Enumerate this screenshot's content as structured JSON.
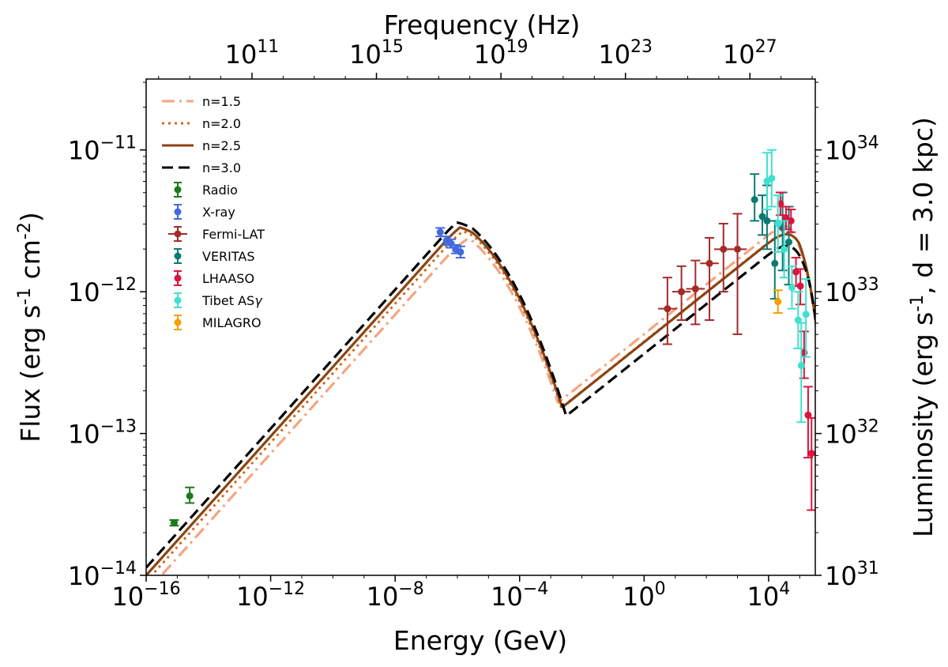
{
  "chart_data": {
    "type": "scatter",
    "title": "",
    "xlabel": "Energy (GeV)",
    "ylabel": "Flux (erg s$^{-1}$ cm$^{-2}$)",
    "top_xlabel": "Frequency (Hz)",
    "right_ylabel": "Luminosity (erg s$^{-1}$, d = 3.0 kpc)",
    "x_scale": "log",
    "y_scale": "log",
    "xlim_log10": [
      -16,
      5.5
    ],
    "ylim_log10": [
      -14,
      -10.5
    ],
    "x_ticks": [
      {
        "base": "10",
        "exp": "−16",
        "value": -16
      },
      {
        "base": "10",
        "exp": "−12",
        "value": -12
      },
      {
        "base": "10",
        "exp": "−8",
        "value": -8
      },
      {
        "base": "10",
        "exp": "−4",
        "value": -4
      },
      {
        "base": "10",
        "exp": "0",
        "value": 0
      },
      {
        "base": "10",
        "exp": "4",
        "value": 4
      }
    ],
    "y_ticks": [
      {
        "base": "10",
        "exp": "−14",
        "value": -14
      },
      {
        "base": "10",
        "exp": "−13",
        "value": -13
      },
      {
        "base": "10",
        "exp": "−12",
        "value": -12
      },
      {
        "base": "10",
        "exp": "−11",
        "value": -11
      }
    ],
    "top_ticks": [
      {
        "base": "10",
        "exp": "11",
        "value": -12.6
      },
      {
        "base": "10",
        "exp": "15",
        "value": -8.6
      },
      {
        "base": "10",
        "exp": "19",
        "value": -4.6
      },
      {
        "base": "10",
        "exp": "23",
        "value": -0.6
      },
      {
        "base": "10",
        "exp": "27",
        "value": 3.4
      }
    ],
    "right_ticks": [
      {
        "base": "10",
        "exp": "31",
        "value": -14
      },
      {
        "base": "10",
        "exp": "32",
        "value": -13
      },
      {
        "base": "10",
        "exp": "33",
        "value": -12
      },
      {
        "base": "10",
        "exp": "34",
        "value": -11
      }
    ],
    "legend_position": "upper-left",
    "models": [
      {
        "name": "n=1.5",
        "label": "n=1.5",
        "color": "#f4a582",
        "dash": "dashdot",
        "shift": -0.06,
        "peak_shift": 0.25,
        "dip": -12.85,
        "ic_peak": -11.47
      },
      {
        "name": "n=2.0",
        "label": "n=2.0",
        "color": "#d2691e",
        "dash": "dotted",
        "shift": -0.02,
        "peak_shift": 0.1,
        "dip": -12.93,
        "ic_peak": -11.45
      },
      {
        "name": "n=2.5",
        "label": "n=2.5",
        "color": "#8b4513",
        "dash": "solid",
        "shift": 0.0,
        "peak_shift": 0.0,
        "dip": -12.95,
        "ic_peak": -11.45
      },
      {
        "name": "n=3.0",
        "label": "n=3.0",
        "color": "#000000",
        "dash": "dashed",
        "shift": 0.03,
        "peak_shift": -0.1,
        "dip": -13.05,
        "ic_peak": -11.45
      }
    ],
    "datasets": [
      {
        "name": "Radio",
        "label": "Radio",
        "color": "#1a7a1a",
        "points": [
          {
            "x": -15.1,
            "y": -13.63,
            "xerr": 0.0,
            "ylo": 0.02,
            "yhi": 0.02
          },
          {
            "x": -14.6,
            "y": -13.44,
            "xerr": 0.0,
            "ylo": 0.05,
            "yhi": 0.06
          }
        ]
      },
      {
        "name": "X-ray",
        "label": "X-ray",
        "color": "#4169e1",
        "points": [
          {
            "x": -6.55,
            "y": -11.58,
            "xerr": 0.1,
            "ylo": 0.03,
            "yhi": 0.03
          },
          {
            "x": -6.35,
            "y": -11.64,
            "xerr": 0.1,
            "ylo": 0.03,
            "yhi": 0.03
          },
          {
            "x": -6.2,
            "y": -11.66,
            "xerr": 0.1,
            "ylo": 0.03,
            "yhi": 0.03
          },
          {
            "x": -6.05,
            "y": -11.7,
            "xerr": 0.1,
            "ylo": 0.03,
            "yhi": 0.03
          },
          {
            "x": -5.9,
            "y": -11.72,
            "xerr": 0.1,
            "ylo": 0.04,
            "yhi": 0.04
          }
        ]
      },
      {
        "name": "Fermi-LAT",
        "label": "Fermi-LAT",
        "color": "#a52a2a",
        "points": [
          {
            "x": 0.75,
            "y": -12.12,
            "xerr": 0.3,
            "ylo": 0.25,
            "yhi": 0.22
          },
          {
            "x": 1.2,
            "y": -12.0,
            "xerr": 0.3,
            "ylo": 0.2,
            "yhi": 0.18
          },
          {
            "x": 1.65,
            "y": -11.98,
            "xerr": 0.3,
            "ylo": 0.25,
            "yhi": 0.2
          },
          {
            "x": 2.1,
            "y": -11.8,
            "xerr": 0.3,
            "ylo": 0.4,
            "yhi": 0.18
          },
          {
            "x": 2.55,
            "y": -11.7,
            "xerr": 0.3,
            "ylo": 0.3,
            "yhi": 0.18
          },
          {
            "x": 3.0,
            "y": -11.7,
            "xerr": 0.3,
            "ylo": 0.6,
            "yhi": 0.25
          }
        ]
      },
      {
        "name": "VERITAS",
        "label": "VERITAS",
        "color": "#0b7b72",
        "points": [
          {
            "x": 3.55,
            "y": -11.35,
            "xerr": 0.0,
            "ylo": 0.15,
            "yhi": 0.18
          },
          {
            "x": 3.8,
            "y": -11.47,
            "xerr": 0.0,
            "ylo": 0.13,
            "yhi": 0.15
          },
          {
            "x": 3.95,
            "y": -11.5,
            "xerr": 0.0,
            "ylo": 0.2,
            "yhi": 0.25
          },
          {
            "x": 4.2,
            "y": -11.8,
            "xerr": 0.0,
            "ylo": 0.25,
            "yhi": 0.3
          },
          {
            "x": 4.45,
            "y": -11.55,
            "xerr": 0.0,
            "ylo": 0.3,
            "yhi": 0.25
          },
          {
            "x": 4.65,
            "y": -11.65,
            "xerr": 0.0,
            "ylo": 0.3,
            "yhi": 0.25
          }
        ]
      },
      {
        "name": "LHAASO",
        "label": "LHAASO",
        "color": "#dc143c",
        "points": [
          {
            "x": 4.38,
            "y": -11.38,
            "xerr": 0.0,
            "ylo": 0.08,
            "yhi": 0.08
          },
          {
            "x": 4.56,
            "y": -11.48,
            "xerr": 0.0,
            "ylo": 0.08,
            "yhi": 0.08
          },
          {
            "x": 4.72,
            "y": -11.5,
            "xerr": 0.0,
            "ylo": 0.08,
            "yhi": 0.08
          },
          {
            "x": 4.88,
            "y": -11.86,
            "xerr": 0.0,
            "ylo": 0.1,
            "yhi": 0.1
          },
          {
            "x": 5.02,
            "y": -11.96,
            "xerr": 0.0,
            "ylo": 0.13,
            "yhi": 0.12
          },
          {
            "x": 5.14,
            "y": -12.43,
            "xerr": 0.0,
            "ylo": 0.18,
            "yhi": 0.15
          },
          {
            "x": 5.27,
            "y": -12.87,
            "xerr": 0.0,
            "ylo": 0.3,
            "yhi": 0.2
          },
          {
            "x": 5.38,
            "y": -13.14,
            "xerr": 0.0,
            "ylo": 0.4,
            "yhi": 0.25
          }
        ]
      },
      {
        "name": "Tibet ASγ",
        "label": "Tibet AS",
        "label_greek": "γ",
        "color": "#40e0d0",
        "points": [
          {
            "x": 3.95,
            "y": -11.22,
            "xerr": 0.0,
            "ylo": 0.2,
            "yhi": 0.2
          },
          {
            "x": 4.1,
            "y": -11.2,
            "xerr": 0.0,
            "ylo": 0.2,
            "yhi": 0.2
          },
          {
            "x": 4.3,
            "y": -11.52,
            "xerr": 0.0,
            "ylo": 0.2,
            "yhi": 0.2
          },
          {
            "x": 4.5,
            "y": -11.7,
            "xerr": 0.0,
            "ylo": 0.2,
            "yhi": 0.2
          },
          {
            "x": 4.75,
            "y": -11.97,
            "xerr": 0.0,
            "ylo": 0.15,
            "yhi": 0.15
          },
          {
            "x": 4.95,
            "y": -12.2,
            "xerr": 0.0,
            "ylo": 0.2,
            "yhi": 0.2
          },
          {
            "x": 5.05,
            "y": -12.52,
            "xerr": 0.0,
            "ylo": 0.4,
            "yhi": 0.3
          },
          {
            "x": 5.2,
            "y": -12.16,
            "xerr": 0.0,
            "ylo": 0.3,
            "yhi": 0.25
          }
        ]
      },
      {
        "name": "MILAGRO",
        "label": "MILAGRO",
        "color": "#f5a000",
        "points": [
          {
            "x": 4.3,
            "y": -12.07,
            "xerr": 0.0,
            "ylo": 0.08,
            "yhi": 0.08
          }
        ]
      }
    ]
  }
}
